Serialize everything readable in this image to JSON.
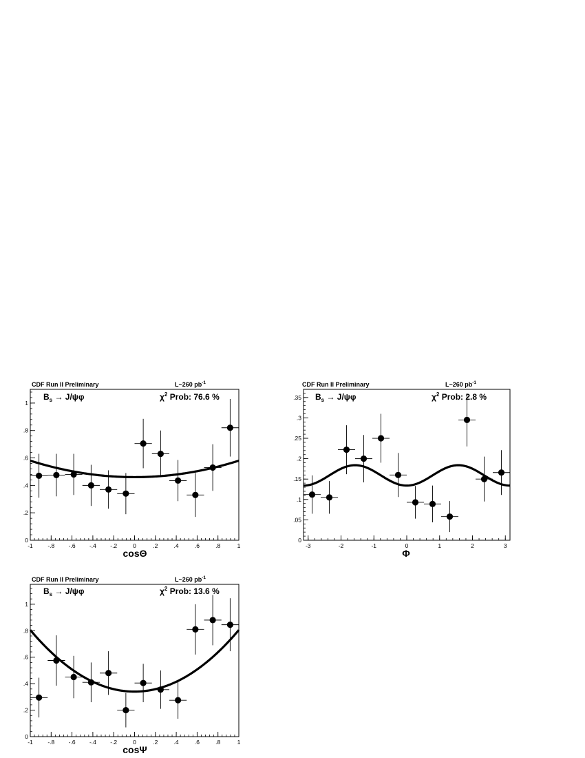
{
  "panels": [
    {
      "header_left": "CDF Run II Preliminary",
      "lumi_text": "L~260 pb",
      "lumi_unit_exp": "-1",
      "decay_label": "B",
      "decay_sub": "s",
      "decay_tail": " → J/ψφ",
      "chi2_prefix": "χ",
      "chi2_exp": "2",
      "chi2_text": " Prob: 76.6 %",
      "xlabel": "cosΘ"
    },
    {
      "header_left": "CDF Run II Preliminary",
      "lumi_text": "L~260 pb",
      "lumi_unit_exp": "-1",
      "decay_label": "B",
      "decay_sub": "s",
      "decay_tail": " → J/ψφ",
      "chi2_prefix": "χ",
      "chi2_exp": "2",
      "chi2_text": " Prob: 2.8 %",
      "xlabel": "Φ"
    },
    {
      "header_left": "CDF Run II Preliminary",
      "lumi_text": "L~260 pb",
      "lumi_unit_exp": "-1",
      "decay_label": "B",
      "decay_sub": "s",
      "decay_tail": " → J/ψφ",
      "chi2_prefix": "χ",
      "chi2_exp": "2",
      "chi2_text": " Prob: 13.6 %",
      "xlabel": "cosΨ"
    }
  ],
  "chart_data": [
    {
      "type": "scatter",
      "xlabel": "cosΘ",
      "xlim": [
        -1,
        1
      ],
      "ylim": [
        0,
        1.1
      ],
      "x_ticks": [
        -1,
        -0.8,
        -0.6,
        -0.4,
        -0.2,
        0,
        0.2,
        0.4,
        0.6,
        0.8,
        1
      ],
      "y_ticks": [
        0,
        0.2,
        0.4,
        0.6,
        0.8,
        1
      ],
      "x": [
        -0.9167,
        -0.75,
        -0.5833,
        -0.4167,
        -0.25,
        -0.0833,
        0.0833,
        0.25,
        0.4167,
        0.5833,
        0.75,
        0.9167
      ],
      "y": [
        0.47,
        0.475,
        0.48,
        0.4,
        0.37,
        0.34,
        0.705,
        0.63,
        0.435,
        0.33,
        0.53,
        0.82
      ],
      "y_err": [
        0.16,
        0.155,
        0.15,
        0.15,
        0.14,
        0.15,
        0.18,
        0.17,
        0.15,
        0.16,
        0.17,
        0.21
      ],
      "x_halfwidth": 0.0833,
      "fit": {
        "form": "a + b*x^2",
        "a": 0.46,
        "b": 0.12
      },
      "grid": false
    },
    {
      "type": "scatter",
      "xlabel": "Φ",
      "xlim": [
        -3.1416,
        3.1416
      ],
      "ylim": [
        0,
        0.37
      ],
      "x_ticks": [
        -3,
        -2,
        -1,
        0,
        1,
        2,
        3
      ],
      "y_ticks": [
        0,
        0.05,
        0.1,
        0.15,
        0.2,
        0.25,
        0.3,
        0.35
      ],
      "x": [
        -2.88,
        -2.356,
        -1.833,
        -1.309,
        -0.785,
        -0.262,
        0.262,
        0.785,
        1.309,
        1.833,
        2.356,
        2.88
      ],
      "y": [
        0.112,
        0.105,
        0.222,
        0.2,
        0.25,
        0.16,
        0.093,
        0.089,
        0.058,
        0.295,
        0.15,
        0.166
      ],
      "y_err": [
        0.047,
        0.04,
        0.06,
        0.058,
        0.06,
        0.054,
        0.04,
        0.045,
        0.038,
        0.065,
        0.055,
        0.055
      ],
      "x_halfwidth": 0.2618,
      "fit": {
        "form": "a - b*cos(2x)",
        "a": 0.159,
        "b": 0.025
      },
      "grid": false
    },
    {
      "type": "scatter",
      "xlabel": "cosΨ",
      "xlim": [
        -1,
        1
      ],
      "ylim": [
        0,
        1.15
      ],
      "x_ticks": [
        -1,
        -0.8,
        -0.6,
        -0.4,
        -0.2,
        0,
        0.2,
        0.4,
        0.6,
        0.8,
        1
      ],
      "y_ticks": [
        0,
        0.2,
        0.4,
        0.6,
        0.8,
        1
      ],
      "x": [
        -0.9167,
        -0.75,
        -0.5833,
        -0.4167,
        -0.25,
        -0.0833,
        0.0833,
        0.25,
        0.4167,
        0.5833,
        0.75,
        0.9167
      ],
      "y": [
        0.295,
        0.575,
        0.45,
        0.41,
        0.48,
        0.2,
        0.405,
        0.355,
        0.275,
        0.81,
        0.88,
        0.845
      ],
      "y_err": [
        0.15,
        0.19,
        0.16,
        0.15,
        0.165,
        0.13,
        0.145,
        0.145,
        0.14,
        0.19,
        0.19,
        0.2
      ],
      "x_halfwidth": 0.0833,
      "fit": {
        "form": "a + b*(x - c)^2",
        "a": 0.34,
        "b": 0.465,
        "c": 0.0
      },
      "grid": false
    }
  ]
}
